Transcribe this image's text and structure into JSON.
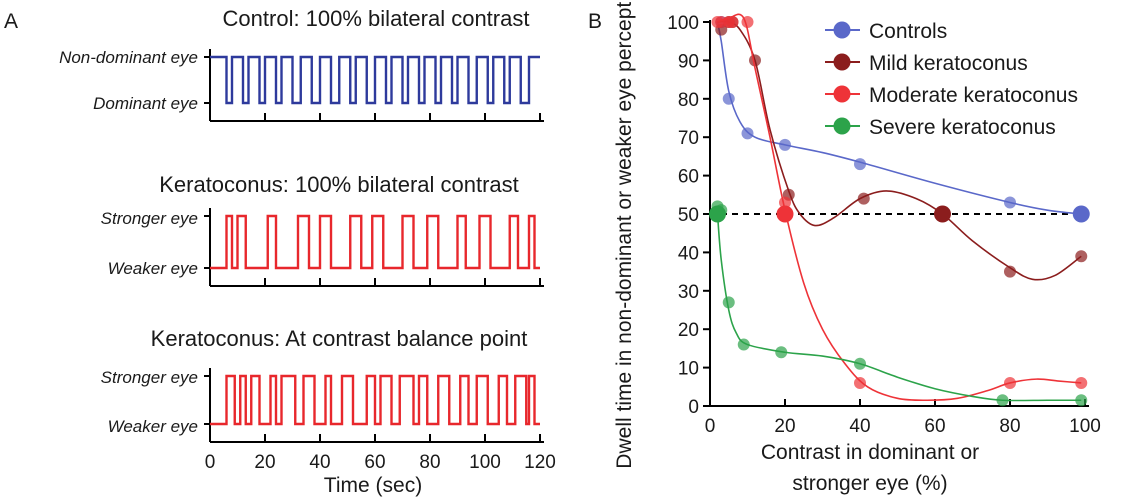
{
  "panel_labels": [
    "A",
    "B"
  ],
  "chart_data": [
    {
      "type": "line",
      "title": "Control: 100% bilateral contrast",
      "ylabels": [
        "Non-dominant eye",
        "Dominant eye"
      ],
      "color": "#2e3a9c",
      "xlim": [
        0,
        120
      ],
      "switch_times": [
        6,
        8,
        12,
        14,
        18,
        20,
        24,
        26,
        30,
        33,
        37,
        40,
        44,
        47,
        51,
        53,
        57,
        60,
        64,
        66,
        70,
        72,
        76,
        78,
        82,
        84,
        88,
        90,
        94,
        97,
        101,
        103,
        107,
        109,
        113,
        116
      ],
      "starts_high": true
    },
    {
      "type": "line",
      "title": "Keratoconus: 100% bilateral contrast",
      "ylabels": [
        "Stronger eye",
        "Weaker eye"
      ],
      "color": "#e8272c",
      "xlim": [
        0,
        120
      ],
      "switch_times": [
        6,
        8,
        10,
        13,
        21,
        24,
        32,
        36,
        40,
        44,
        51,
        55,
        59,
        63,
        70,
        74,
        79,
        83,
        90,
        93,
        98,
        102,
        109,
        112,
        116,
        118
      ],
      "starts_high": false
    },
    {
      "type": "line",
      "title": "Keratoconus: At contrast balance point",
      "ylabels": [
        "Stronger eye",
        "Weaker eye"
      ],
      "color": "#e8272c",
      "xlim": [
        0,
        120
      ],
      "xticks": [
        0,
        20,
        40,
        60,
        80,
        100,
        120
      ],
      "xlabel": "Time (sec)",
      "switch_times": [
        6,
        9,
        11,
        13,
        15,
        18,
        22,
        24,
        26,
        31,
        34,
        38,
        42,
        44,
        48,
        52,
        57,
        60,
        62,
        66,
        69,
        74,
        76,
        79,
        83,
        87,
        91,
        94,
        97,
        101,
        105,
        108,
        111,
        115,
        116,
        118
      ],
      "starts_high": false
    },
    {
      "type": "scatter",
      "xlabel": "Contrast in dominant or stronger eye (%)",
      "ylabel": "Dwell time in non-dominant or weaker eye percept (%)",
      "xlim": [
        0,
        100
      ],
      "ylim": [
        0,
        100
      ],
      "xticks": [
        0,
        20,
        40,
        60,
        80,
        100
      ],
      "yticks": [
        0,
        10,
        20,
        30,
        40,
        50,
        60,
        70,
        80,
        90,
        100
      ],
      "reference_line": 50,
      "legend_position": "top-right",
      "series": [
        {
          "name": "Controls",
          "color": "#5a68c9",
          "x": [
            3,
            5,
            10,
            20,
            40,
            80
          ],
          "y": [
            100,
            80,
            71,
            68,
            63,
            53
          ],
          "balance": [
            99,
            50
          ],
          "curve": [
            [
              2,
              100
            ],
            [
              3,
              95
            ],
            [
              5,
              82
            ],
            [
              8,
              74
            ],
            [
              12,
              70
            ],
            [
              20,
              68
            ],
            [
              30,
              66
            ],
            [
              40,
              63.5
            ],
            [
              60,
              58
            ],
            [
              80,
              53
            ],
            [
              90,
              51
            ],
            [
              99,
              50
            ]
          ]
        },
        {
          "name": "Mild keratoconus",
          "color": "#8b1d1d",
          "x": [
            3,
            5,
            6,
            12,
            21,
            41,
            80,
            99
          ],
          "y": [
            98,
            100,
            100,
            90,
            55,
            54,
            35,
            39
          ],
          "balance": [
            62,
            50
          ],
          "curve": [
            [
              2,
              100
            ],
            [
              5,
              100
            ],
            [
              8,
              98
            ],
            [
              12,
              90
            ],
            [
              16,
              72
            ],
            [
              21,
              56
            ],
            [
              24,
              50
            ],
            [
              28,
              47
            ],
            [
              33,
              49
            ],
            [
              40,
              54
            ],
            [
              47,
              56
            ],
            [
              55,
              54
            ],
            [
              62,
              50
            ],
            [
              70,
              43
            ],
            [
              80,
              36
            ],
            [
              86,
              33
            ],
            [
              92,
              34
            ],
            [
              99,
              39
            ]
          ]
        },
        {
          "name": "Moderate keratoconus",
          "color": "#ee3338",
          "x": [
            2,
            3,
            5,
            6,
            10,
            20,
            40,
            80,
            99
          ],
          "y": [
            100,
            100,
            100,
            100,
            100,
            53,
            6,
            6,
            6
          ],
          "balance": [
            20,
            50
          ],
          "curve": [
            [
              2,
              100
            ],
            [
              5,
              101
            ],
            [
              9,
              101
            ],
            [
              12,
              88
            ],
            [
              16,
              70
            ],
            [
              20,
              51
            ],
            [
              25,
              32
            ],
            [
              30,
              20
            ],
            [
              36,
              11
            ],
            [
              42,
              5
            ],
            [
              50,
              2
            ],
            [
              58,
              1.5
            ],
            [
              66,
              2
            ],
            [
              74,
              4
            ],
            [
              80,
              6
            ],
            [
              87,
              7
            ],
            [
              93,
              6.5
            ],
            [
              99,
              6
            ]
          ]
        },
        {
          "name": "Severe keratoconus",
          "color": "#2ca34a",
          "x": [
            2,
            3,
            5,
            9,
            19,
            40,
            78,
            99
          ],
          "y": [
            52,
            51,
            27,
            16,
            14,
            11,
            1.5,
            1.5
          ],
          "balance": [
            2,
            50
          ],
          "curve": [
            [
              2,
              50
            ],
            [
              3,
              38
            ],
            [
              5,
              25
            ],
            [
              7,
              19
            ],
            [
              10,
              16
            ],
            [
              20,
              14
            ],
            [
              30,
              13
            ],
            [
              40,
              11
            ],
            [
              50,
              7.5
            ],
            [
              60,
              4.5
            ],
            [
              70,
              2.5
            ],
            [
              78,
              1.5
            ],
            [
              90,
              1.5
            ],
            [
              99,
              1.5
            ]
          ]
        }
      ]
    }
  ]
}
